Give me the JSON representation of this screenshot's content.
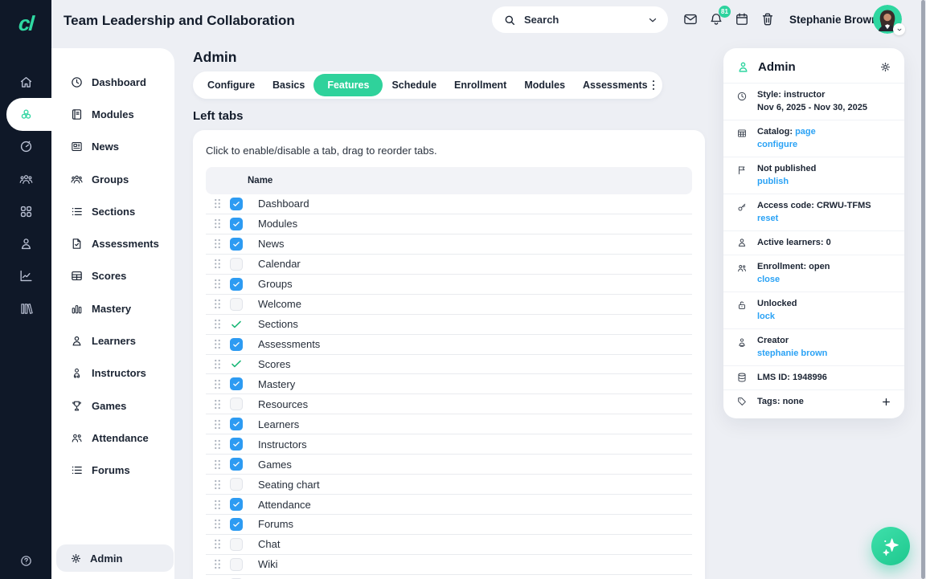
{
  "brand": {
    "logo_text": "cl",
    "accent_green": "#2fd5a0",
    "link_blue": "#2aa2f5",
    "checkbox_blue": "#2d9bf2",
    "dark_navy": "#0f1828"
  },
  "header": {
    "course_title": "Team Leadership and Collaboration",
    "search_placeholder": "Search",
    "search_icon": "search-icon",
    "search_chevron_icon": "chevron-down-icon",
    "icons": [
      "mail-icon",
      "bell-icon",
      "calendar-icon",
      "trash-icon"
    ],
    "notification_count": "81",
    "user_name": "Stephanie Brown",
    "avatar_chevron_icon": "chevron-down-icon"
  },
  "rail": {
    "items": [
      {
        "name": "home",
        "icon": "home-icon",
        "active": false
      },
      {
        "name": "courses",
        "icon": "modules-cluster-icon",
        "active": true
      },
      {
        "name": "dashboard",
        "icon": "gauge-icon",
        "active": false
      },
      {
        "name": "groups",
        "icon": "people-icon",
        "active": false
      },
      {
        "name": "apps",
        "icon": "grid-icon",
        "active": false
      },
      {
        "name": "profile",
        "icon": "person-icon",
        "active": false
      },
      {
        "name": "analytics",
        "icon": "chart-icon",
        "active": false
      },
      {
        "name": "library",
        "icon": "library-icon",
        "active": false
      }
    ],
    "help_icon": "help-icon"
  },
  "sidebar": {
    "items": [
      {
        "icon": "clock-icon",
        "label": "Dashboard"
      },
      {
        "icon": "book-icon",
        "label": "Modules"
      },
      {
        "icon": "news-icon",
        "label": "News"
      },
      {
        "icon": "groups-icon",
        "label": "Groups"
      },
      {
        "icon": "list-icon",
        "label": "Sections"
      },
      {
        "icon": "doc-check-icon",
        "label": "Assessments"
      },
      {
        "icon": "table-icon",
        "label": "Scores"
      },
      {
        "icon": "bars-icon",
        "label": "Mastery"
      },
      {
        "icon": "person-icon",
        "label": "Learners"
      },
      {
        "icon": "instructor-icon",
        "label": "Instructors"
      },
      {
        "icon": "trophy-icon",
        "label": "Games"
      },
      {
        "icon": "attendance-icon",
        "label": "Attendance"
      },
      {
        "icon": "list-icon",
        "label": "Forums"
      }
    ],
    "admin": {
      "icon": "gear-icon",
      "label": "Admin"
    }
  },
  "main": {
    "page_title": "Admin",
    "tabs": [
      {
        "label": "Configure",
        "active": false
      },
      {
        "label": "Basics",
        "active": false
      },
      {
        "label": "Features",
        "active": true
      },
      {
        "label": "Schedule",
        "active": false
      },
      {
        "label": "Enrollment",
        "active": false
      },
      {
        "label": "Modules",
        "active": false
      },
      {
        "label": "Assessments",
        "active": false
      }
    ],
    "overflow_menu_icon": "kebab-icon",
    "section_title": "Left tabs",
    "hint": "Click to enable/disable a tab, drag to reorder tabs.",
    "table": {
      "name_header": "Name",
      "rows": [
        {
          "label": "Dashboard",
          "state": "checked"
        },
        {
          "label": "Modules",
          "state": "checked"
        },
        {
          "label": "News",
          "state": "checked"
        },
        {
          "label": "Calendar",
          "state": "unchecked"
        },
        {
          "label": "Groups",
          "state": "checked"
        },
        {
          "label": "Welcome",
          "state": "unchecked"
        },
        {
          "label": "Sections",
          "state": "always_on"
        },
        {
          "label": "Assessments",
          "state": "checked"
        },
        {
          "label": "Scores",
          "state": "always_on"
        },
        {
          "label": "Mastery",
          "state": "checked"
        },
        {
          "label": "Resources",
          "state": "unchecked"
        },
        {
          "label": "Learners",
          "state": "checked"
        },
        {
          "label": "Instructors",
          "state": "checked"
        },
        {
          "label": "Games",
          "state": "checked"
        },
        {
          "label": "Seating chart",
          "state": "unchecked"
        },
        {
          "label": "Attendance",
          "state": "checked"
        },
        {
          "label": "Forums",
          "state": "checked"
        },
        {
          "label": "Chat",
          "state": "unchecked"
        },
        {
          "label": "Wiki",
          "state": "unchecked"
        },
        {
          "label": "",
          "state": "unchecked"
        }
      ]
    }
  },
  "details_panel": {
    "title": "Admin",
    "title_icon": "admin-person-icon",
    "settings_icon": "gear-icon",
    "rows": [
      {
        "icon": "clock-icon",
        "line1": "Style: instructor",
        "line2": "Nov 6, 2025 - Nov 30, 2025"
      },
      {
        "icon": "catalog-icon",
        "line1": "Catalog: ",
        "line1_link": "page",
        "line2_link": "configure"
      },
      {
        "icon": "flag-icon",
        "line1": "Not published",
        "line2_link": "publish"
      },
      {
        "icon": "key-icon",
        "line1": "Access code: CRWU-TFMS",
        "line2_link": "reset"
      },
      {
        "icon": "person-icon",
        "line1": "Active learners: 0"
      },
      {
        "icon": "enrollment-icon",
        "line1": "Enrollment: open",
        "line2_link": "close"
      },
      {
        "icon": "unlock-icon",
        "line1": "Unlocked",
        "line2_link": "lock"
      },
      {
        "icon": "creator-icon",
        "line1": "Creator",
        "line2_link": "stephanie brown"
      },
      {
        "icon": "database-icon",
        "line1": "LMS ID: 1948996"
      },
      {
        "icon": "tag-icon",
        "line1": "Tags: none",
        "trailing_icon": "plus-icon"
      }
    ]
  },
  "fab": {
    "icon": "sparkle-icon"
  }
}
